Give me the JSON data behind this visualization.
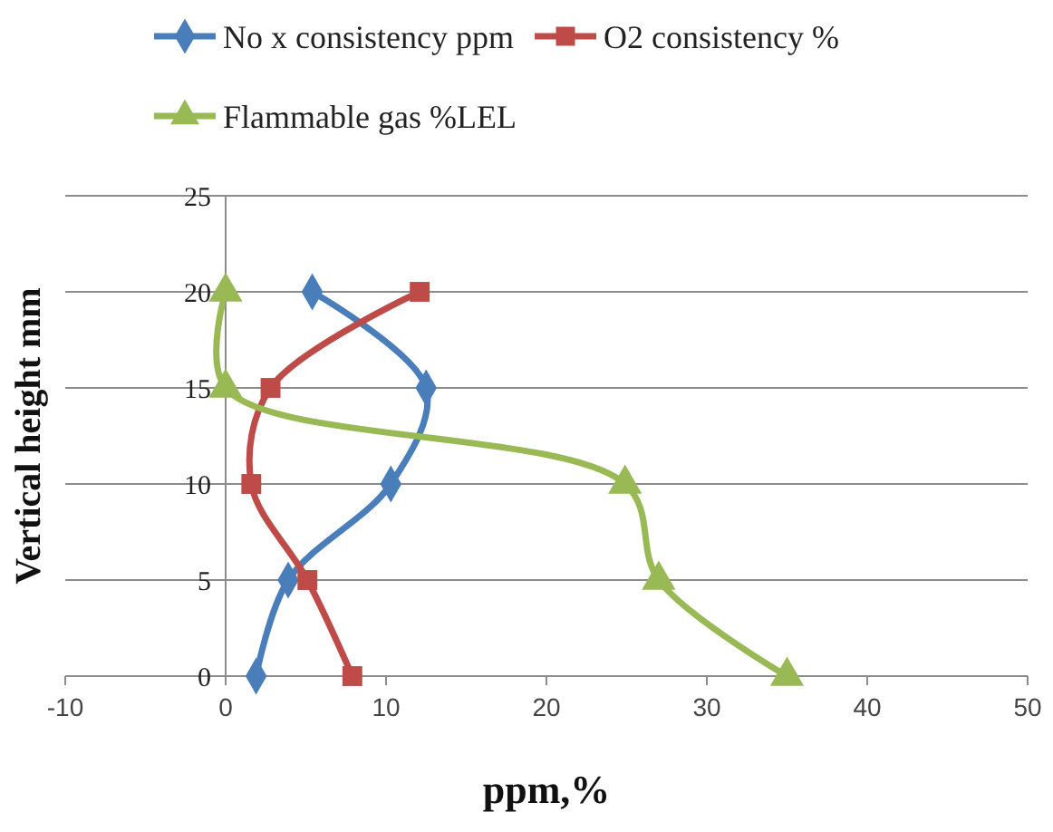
{
  "chart_data": {
    "type": "line",
    "xlabel": "ppm,%",
    "ylabel": "Vertical height mm",
    "xlim": [
      -10,
      50
    ],
    "xticks": [
      -10,
      0,
      10,
      20,
      30,
      40,
      50
    ],
    "ylim": [
      0,
      25
    ],
    "yticks": [
      0,
      5,
      10,
      15,
      20,
      25
    ],
    "grid": "y",
    "legend": "top",
    "line_style": "solid",
    "series": [
      {
        "name": "No x  consistency ppm",
        "color": "#4a7ebb",
        "marker": "diamond",
        "x": [
          1.9,
          3.9,
          10.3,
          12.5,
          5.4
        ],
        "values": [
          0,
          5,
          10,
          15,
          20
        ]
      },
      {
        "name": "O2 consistency %",
        "color": "#be4b48",
        "marker": "square",
        "x": [
          7.9,
          5.1,
          1.6,
          2.8,
          12.1
        ],
        "values": [
          0,
          5,
          10,
          15,
          20
        ]
      },
      {
        "name": "Flammable gas %LEL",
        "color": "#98b954",
        "marker": "triangle",
        "x": [
          35,
          27,
          24.9,
          0,
          0
        ],
        "values": [
          0,
          5,
          10,
          15,
          20
        ]
      }
    ]
  }
}
